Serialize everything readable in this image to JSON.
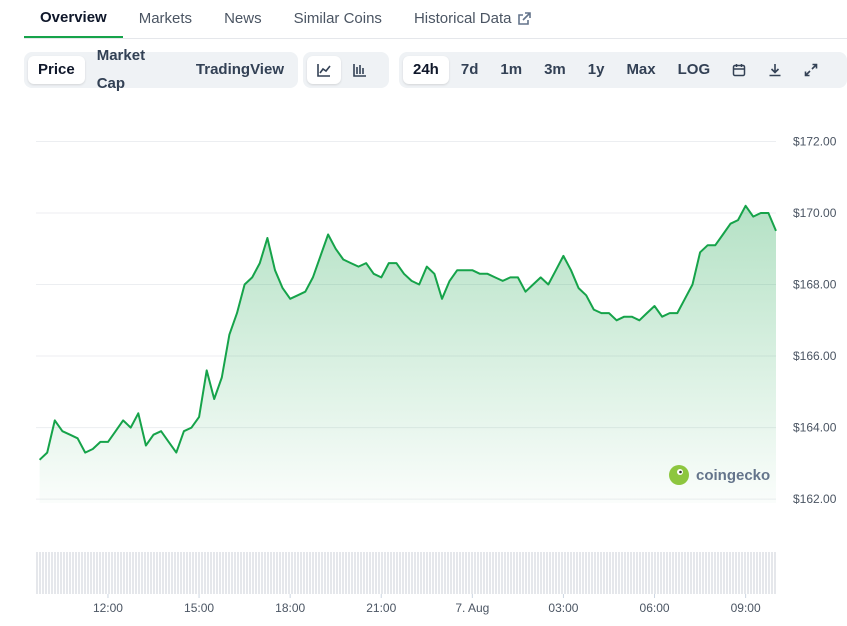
{
  "tabs": [
    "Overview",
    "Markets",
    "News",
    "Similar Coins",
    "Historical Data"
  ],
  "chart_types": [
    "Price",
    "Market Cap",
    "TradingView"
  ],
  "ranges": [
    "24h",
    "7d",
    "1m",
    "3m",
    "1y",
    "Max",
    "LOG"
  ],
  "watermark": "coingecko",
  "chart_data": {
    "type": "line",
    "x": [
      9.75,
      10,
      10.25,
      10.5,
      10.75,
      11,
      11.25,
      11.5,
      11.75,
      12,
      12.25,
      12.5,
      12.75,
      13,
      13.25,
      13.5,
      13.75,
      14,
      14.25,
      14.5,
      14.75,
      15,
      15.25,
      15.5,
      15.75,
      16,
      16.25,
      16.5,
      16.75,
      17,
      17.25,
      17.5,
      17.75,
      18,
      18.25,
      18.5,
      18.75,
      19,
      19.25,
      19.5,
      19.75,
      20,
      20.25,
      20.5,
      20.75,
      21,
      21.25,
      21.5,
      21.75,
      22,
      22.25,
      22.5,
      22.75,
      23,
      23.25,
      23.5,
      23.75,
      24,
      24.25,
      24.5,
      24.75,
      25,
      25.25,
      25.5,
      25.75,
      26,
      26.25,
      26.5,
      26.75,
      27,
      27.25,
      27.5,
      27.75,
      28,
      28.25,
      28.5,
      28.75,
      29,
      29.25,
      29.5,
      29.75,
      30,
      30.25,
      30.5,
      30.75,
      31,
      31.25,
      31.5,
      31.75,
      32,
      32.25,
      32.5,
      32.75,
      33,
      33.25,
      33.5,
      33.75,
      34
    ],
    "series": [
      {
        "name": "Price",
        "color": "#16a34a",
        "values": [
          163.1,
          163.3,
          164.2,
          163.9,
          163.8,
          163.7,
          163.3,
          163.4,
          163.6,
          163.6,
          163.9,
          164.2,
          164.0,
          164.4,
          163.5,
          163.8,
          163.9,
          163.6,
          163.3,
          163.9,
          164.0,
          164.3,
          165.6,
          164.8,
          165.4,
          166.6,
          167.2,
          168.0,
          168.2,
          168.6,
          169.3,
          168.4,
          167.9,
          167.6,
          167.7,
          167.8,
          168.2,
          168.8,
          169.4,
          169.0,
          168.7,
          168.6,
          168.5,
          168.6,
          168.3,
          168.2,
          168.6,
          168.6,
          168.3,
          168.1,
          168.0,
          168.5,
          168.3,
          167.6,
          168.1,
          168.4,
          168.4,
          168.4,
          168.3,
          168.3,
          168.2,
          168.1,
          168.2,
          168.2,
          167.8,
          168.0,
          168.2,
          168.0,
          168.4,
          168.8,
          168.4,
          167.9,
          167.7,
          167.3,
          167.2,
          167.2,
          167.0,
          167.1,
          167.1,
          167.0,
          167.2,
          167.4,
          167.1,
          167.2,
          167.2,
          167.6,
          168.0,
          168.9,
          169.1,
          169.1,
          169.4,
          169.7,
          169.8,
          170.2,
          169.9,
          170.0,
          170.0,
          169.5
        ]
      }
    ],
    "xlim": [
      9.63,
      34.0
    ],
    "xticks": [
      {
        "value": 12,
        "label": "12:00"
      },
      {
        "value": 15,
        "label": "15:00"
      },
      {
        "value": 18,
        "label": "18:00"
      },
      {
        "value": 21,
        "label": "21:00"
      },
      {
        "value": 24,
        "label": "7. Aug"
      },
      {
        "value": 27,
        "label": "03:00"
      },
      {
        "value": 30,
        "label": "06:00"
      },
      {
        "value": 33,
        "label": "09:00"
      }
    ],
    "ylim": [
      161.5,
      172.6
    ],
    "yticks": [
      {
        "value": 162,
        "label": "$162.00"
      },
      {
        "value": 164,
        "label": "$164.00"
      },
      {
        "value": 166,
        "label": "$166.00"
      },
      {
        "value": 168,
        "label": "$168.00"
      },
      {
        "value": 170,
        "label": "$170.00"
      },
      {
        "value": 172,
        "label": "$172.00"
      }
    ],
    "grid": true
  }
}
